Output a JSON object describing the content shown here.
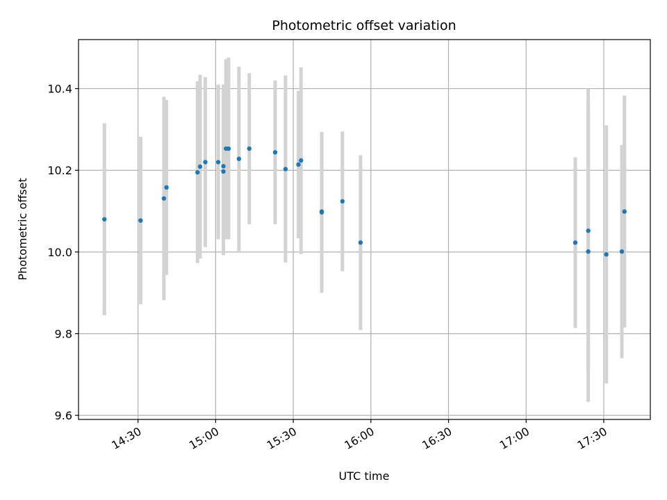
{
  "chart_data": {
    "type": "scatter",
    "title": "Photometric offset variation",
    "xlabel": "UTC time",
    "ylabel": "Photometric offset",
    "x_tick_labels": [
      "14:30",
      "15:00",
      "15:30",
      "16:00",
      "16:30",
      "17:00",
      "17:30"
    ],
    "x_tick_values": [
      "14:30",
      "15:00",
      "15:30",
      "16:00",
      "16:30",
      "17:00",
      "17:30"
    ],
    "xlim": [
      "14:07",
      "17:48"
    ],
    "y_tick_labels": [
      "9.6",
      "9.8",
      "10.0",
      "10.2",
      "10.4"
    ],
    "y_tick_values": [
      9.6,
      9.8,
      10.0,
      10.2,
      10.4
    ],
    "ylim": [
      9.59,
      10.52
    ],
    "grid": true,
    "point_color": "#1f77b4",
    "errorbar_color": "#d3d3d3",
    "points": [
      {
        "x": "14:17",
        "y": 10.08,
        "low": 9.845,
        "high": 10.315
      },
      {
        "x": "14:31",
        "y": 10.077,
        "low": 9.872,
        "high": 10.282
      },
      {
        "x": "14:40",
        "y": 10.131,
        "low": 9.882,
        "high": 10.38
      },
      {
        "x": "14:41",
        "y": 10.158,
        "low": 9.944,
        "high": 10.372
      },
      {
        "x": "14:53",
        "y": 10.195,
        "low": 9.973,
        "high": 10.418
      },
      {
        "x": "14:54",
        "y": 10.209,
        "low": 9.984,
        "high": 10.434
      },
      {
        "x": "14:56",
        "y": 10.22,
        "low": 10.012,
        "high": 10.428
      },
      {
        "x": "15:01",
        "y": 10.22,
        "low": 10.031,
        "high": 10.41
      },
      {
        "x": "15:03",
        "y": 10.21,
        "low": 10.031,
        "high": 10.41
      },
      {
        "x": "15:03",
        "y": 10.197,
        "low": 9.992,
        "high": 10.402
      },
      {
        "x": "15:04",
        "y": 10.253,
        "low": 10.031,
        "high": 10.472
      },
      {
        "x": "15:05",
        "y": 10.253,
        "low": 10.031,
        "high": 10.476
      },
      {
        "x": "15:09",
        "y": 10.228,
        "low": 10.002,
        "high": 10.454
      },
      {
        "x": "15:13",
        "y": 10.253,
        "low": 10.068,
        "high": 10.438
      },
      {
        "x": "15:23",
        "y": 10.244,
        "low": 10.068,
        "high": 10.42
      },
      {
        "x": "15:27",
        "y": 10.203,
        "low": 9.974,
        "high": 10.432
      },
      {
        "x": "15:32",
        "y": 10.214,
        "low": 10.034,
        "high": 10.394
      },
      {
        "x": "15:33",
        "y": 10.224,
        "low": 9.995,
        "high": 10.452
      },
      {
        "x": "15:41",
        "y": 10.099,
        "low": 9.905,
        "high": 10.293
      },
      {
        "x": "15:41",
        "y": 10.097,
        "low": 9.9,
        "high": 10.294
      },
      {
        "x": "15:49",
        "y": 10.124,
        "low": 9.953,
        "high": 10.295
      },
      {
        "x": "15:56",
        "y": 10.023,
        "low": 9.809,
        "high": 10.237
      },
      {
        "x": "17:19",
        "y": 10.023,
        "low": 9.814,
        "high": 10.232
      },
      {
        "x": "17:24",
        "y": 10.001,
        "low": 9.633,
        "high": 10.369
      },
      {
        "x": "17:24",
        "y": 10.052,
        "low": 9.704,
        "high": 10.4
      },
      {
        "x": "17:31",
        "y": 9.994,
        "low": 9.678,
        "high": 10.31
      },
      {
        "x": "17:37",
        "y": 10.001,
        "low": 9.74,
        "high": 10.262
      },
      {
        "x": "17:38",
        "y": 10.099,
        "low": 9.815,
        "high": 10.383
      }
    ]
  }
}
